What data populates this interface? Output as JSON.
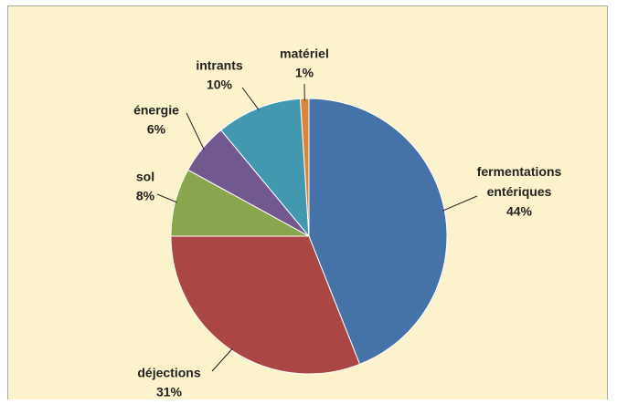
{
  "chart_data": {
    "type": "pie",
    "categories": [
      "fermentations entériques",
      "déjections",
      "sol",
      "énergie",
      "intrants",
      "matériel"
    ],
    "values": [
      44,
      31,
      8,
      6,
      10,
      1
    ],
    "value_labels": [
      "44%",
      "31%",
      "8%",
      "6%",
      "10%",
      "1%"
    ],
    "colors": [
      "#4572a7",
      "#aa4643",
      "#89a54e",
      "#71588f",
      "#4198af",
      "#db843d"
    ]
  }
}
